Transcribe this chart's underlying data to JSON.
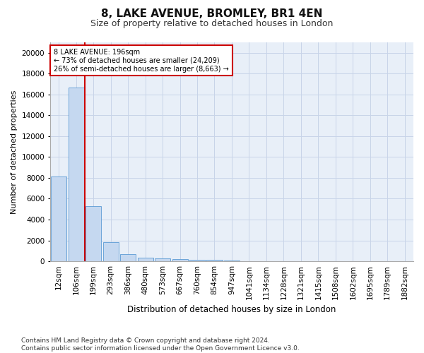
{
  "title": "8, LAKE AVENUE, BROMLEY, BR1 4EN",
  "subtitle": "Size of property relative to detached houses in London",
  "xlabel": "Distribution of detached houses by size in London",
  "ylabel": "Number of detached properties",
  "bar_color": "#c5d8f0",
  "bar_edge_color": "#5b9bd5",
  "vline_color": "#cc0000",
  "annotation_text": "8 LAKE AVENUE: 196sqm\n← 73% of detached houses are smaller (24,209)\n26% of semi-detached houses are larger (8,663) →",
  "annotation_box_color": "#ffffff",
  "annotation_box_edge": "#cc0000",
  "categories": [
    "12sqm",
    "106sqm",
    "199sqm",
    "293sqm",
    "386sqm",
    "480sqm",
    "573sqm",
    "667sqm",
    "760sqm",
    "854sqm",
    "947sqm",
    "1041sqm",
    "1134sqm",
    "1228sqm",
    "1321sqm",
    "1415sqm",
    "1508sqm",
    "1602sqm",
    "1695sqm",
    "1789sqm",
    "1882sqm"
  ],
  "values": [
    8100,
    16650,
    5300,
    1850,
    700,
    350,
    265,
    205,
    155,
    115,
    70,
    0,
    0,
    0,
    0,
    0,
    0,
    0,
    0,
    0,
    0
  ],
  "ylim": [
    0,
    21000
  ],
  "yticks": [
    0,
    2000,
    4000,
    6000,
    8000,
    10000,
    12000,
    14000,
    16000,
    18000,
    20000
  ],
  "footnote": "Contains HM Land Registry data © Crown copyright and database right 2024.\nContains public sector information licensed under the Open Government Licence v3.0.",
  "plot_bg": "#e8eff8",
  "fig_bg": "#ffffff",
  "grid_color": "#c8d4e8",
  "title_fontsize": 11,
  "subtitle_fontsize": 9,
  "xlabel_fontsize": 8.5,
  "ylabel_fontsize": 8,
  "tick_fontsize": 7.5,
  "footnote_fontsize": 6.5,
  "vline_x_index": 1.5
}
